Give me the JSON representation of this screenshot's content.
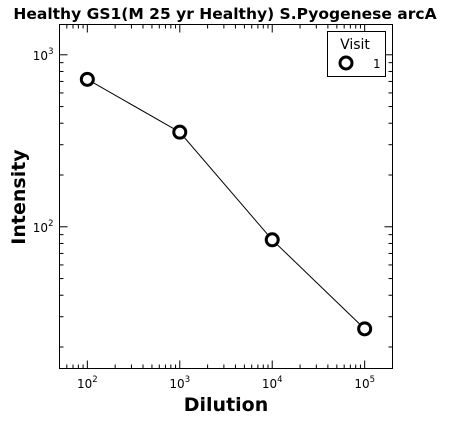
{
  "chart_data": {
    "type": "line",
    "title": "Healthy GS1(M 25 yr Healthy) S.Pyogenese arcA",
    "xlabel": "Dilution",
    "ylabel": "Intensity",
    "xscale": "log",
    "yscale": "log",
    "xlim": [
      50,
      200000
    ],
    "ylim": [
      15,
      1500
    ],
    "x_ticks": [
      {
        "value": 100,
        "base": "10",
        "exp": "2"
      },
      {
        "value": 1000,
        "base": "10",
        "exp": "3"
      },
      {
        "value": 10000,
        "base": "10",
        "exp": "4"
      },
      {
        "value": 100000,
        "base": "10",
        "exp": "5"
      }
    ],
    "y_ticks": [
      {
        "value": 100,
        "base": "10",
        "exp": "2"
      },
      {
        "value": 1000,
        "base": "10",
        "exp": "3"
      }
    ],
    "grid": false,
    "legend": {
      "title": "Visit",
      "position": "top-right"
    },
    "series": [
      {
        "name": "1",
        "marker": "open-circle",
        "color": "#000000",
        "x": [
          100,
          1000,
          10000,
          100000
        ],
        "y": [
          720,
          355,
          84,
          25.5
        ]
      }
    ]
  }
}
